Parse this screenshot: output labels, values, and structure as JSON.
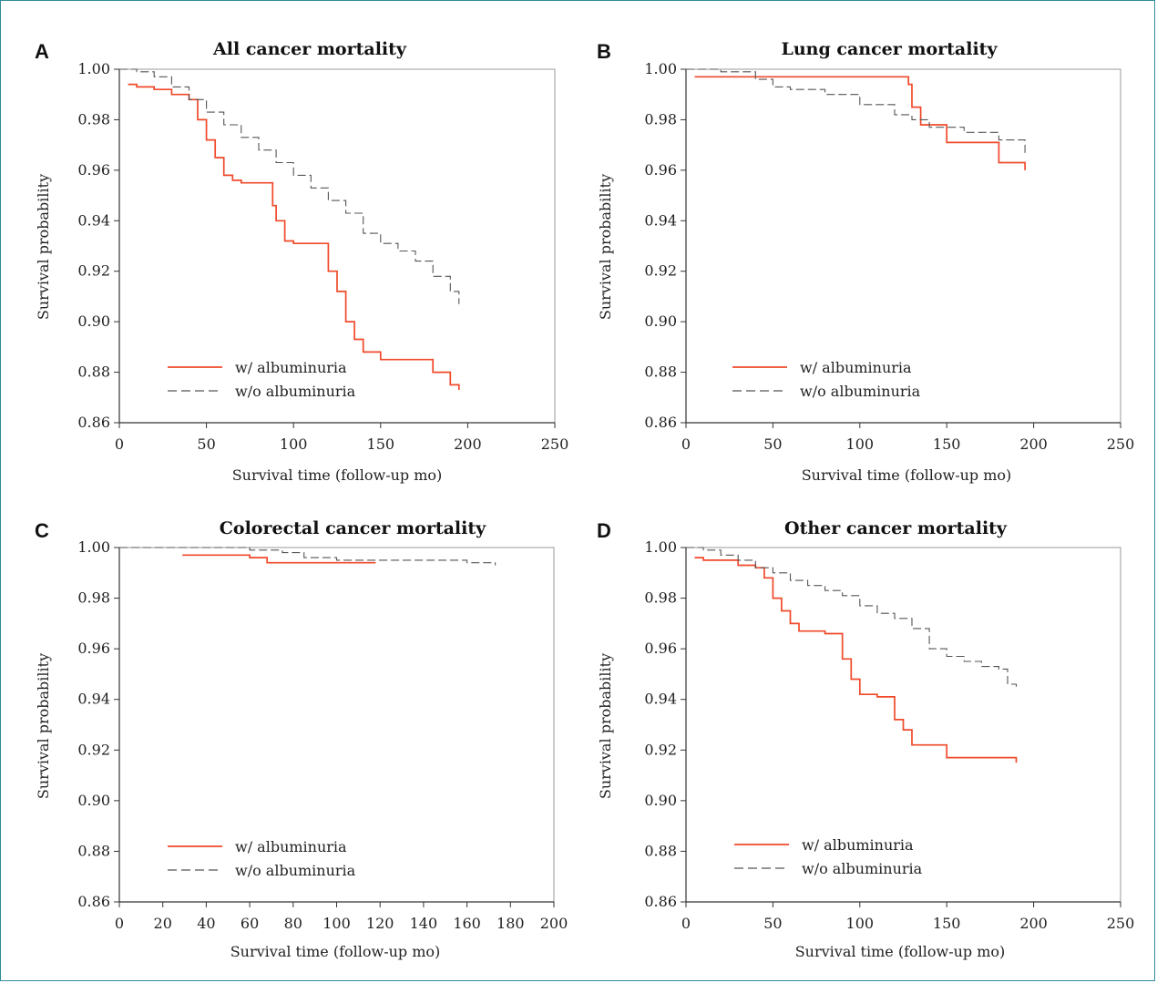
{
  "colors": {
    "with_series": "#f0492a",
    "without_series": "#555555",
    "axis": "#333333",
    "frame": "#2f8f9a"
  },
  "chart_data": [
    {
      "panel_letter": "A",
      "type": "line",
      "title": "All cancer mortality",
      "xlabel": "Survival time (follow-up mo)",
      "ylabel": "Survival probability",
      "xlim": [
        0,
        250
      ],
      "ylim": [
        0.86,
        1.0
      ],
      "xticks": [
        0,
        50,
        100,
        150,
        200,
        250
      ],
      "yticks": [
        0.86,
        0.88,
        0.9,
        0.92,
        0.94,
        0.96,
        0.98,
        1.0
      ],
      "ytick_labels": [
        "0.86",
        "0.88",
        "0.90",
        "0.92",
        "0.94",
        "0.96",
        "0.98",
        "1.00"
      ],
      "legend_position": "bottom-left",
      "series": [
        {
          "name": "w/  albuminuria",
          "style": "solid",
          "x": [
            5,
            10,
            20,
            30,
            40,
            45,
            50,
            55,
            60,
            65,
            70,
            80,
            88,
            90,
            95,
            100,
            110,
            120,
            125,
            130,
            135,
            140,
            150,
            160,
            175,
            180,
            190,
            195
          ],
          "y": [
            0.994,
            0.993,
            0.992,
            0.99,
            0.988,
            0.98,
            0.972,
            0.965,
            0.958,
            0.956,
            0.955,
            0.955,
            0.946,
            0.94,
            0.932,
            0.931,
            0.931,
            0.92,
            0.912,
            0.9,
            0.893,
            0.888,
            0.885,
            0.885,
            0.885,
            0.88,
            0.875,
            0.873
          ]
        },
        {
          "name": "w/o albuminuria",
          "style": "dashed",
          "x": [
            0,
            10,
            20,
            30,
            40,
            50,
            60,
            70,
            80,
            90,
            100,
            110,
            120,
            130,
            140,
            150,
            160,
            170,
            180,
            190,
            195
          ],
          "y": [
            1.0,
            0.999,
            0.997,
            0.993,
            0.988,
            0.983,
            0.978,
            0.973,
            0.968,
            0.963,
            0.958,
            0.953,
            0.948,
            0.943,
            0.935,
            0.931,
            0.928,
            0.924,
            0.918,
            0.912,
            0.907
          ]
        }
      ]
    },
    {
      "panel_letter": "B",
      "type": "line",
      "title": "Lung cancer mortality",
      "xlabel": "Survival time (follow-up mo)",
      "ylabel": "Survival probability",
      "xlim": [
        0,
        250
      ],
      "ylim": [
        0.86,
        1.0
      ],
      "xticks": [
        0,
        50,
        100,
        150,
        200,
        250
      ],
      "yticks": [
        0.86,
        0.88,
        0.9,
        0.92,
        0.94,
        0.96,
        0.98,
        1.0
      ],
      "ytick_labels": [
        "0.86",
        "0.88",
        "0.90",
        "0.92",
        "0.94",
        "0.96",
        "0.98",
        "1.00"
      ],
      "legend_position": "bottom-left",
      "series": [
        {
          "name": "w/  albuminuria",
          "style": "solid",
          "x": [
            5,
            40,
            128,
            130,
            135,
            150,
            178,
            180,
            195
          ],
          "y": [
            0.997,
            0.997,
            0.994,
            0.985,
            0.978,
            0.971,
            0.971,
            0.963,
            0.96
          ]
        },
        {
          "name": "w/o albuminuria",
          "style": "dashed",
          "x": [
            0,
            20,
            40,
            50,
            60,
            80,
            100,
            120,
            130,
            140,
            160,
            180,
            190,
            195
          ],
          "y": [
            1.0,
            0.999,
            0.996,
            0.993,
            0.992,
            0.99,
            0.986,
            0.982,
            0.98,
            0.977,
            0.975,
            0.972,
            0.972,
            0.966
          ]
        }
      ]
    },
    {
      "panel_letter": "C",
      "type": "line",
      "title": "Colorectal cancer mortality",
      "xlabel": "Survival time (follow-up mo)",
      "ylabel": "Survival probability",
      "xlim": [
        0,
        200
      ],
      "ylim": [
        0.86,
        1.0
      ],
      "xticks": [
        0,
        20,
        40,
        60,
        80,
        100,
        120,
        140,
        160,
        180,
        200
      ],
      "yticks": [
        0.86,
        0.88,
        0.9,
        0.92,
        0.94,
        0.96,
        0.98,
        1.0
      ],
      "ytick_labels": [
        "0.86",
        "0.88",
        "0.90",
        "0.92",
        "0.94",
        "0.96",
        "0.98",
        "1.00"
      ],
      "legend_position": "bottom-left",
      "series": [
        {
          "name": "w/  albuminuria",
          "style": "solid",
          "x": [
            29,
            40,
            60,
            68,
            80,
            100,
            118
          ],
          "y": [
            0.997,
            0.997,
            0.996,
            0.994,
            0.994,
            0.994,
            0.994
          ]
        },
        {
          "name": "w/o albuminuria",
          "style": "dashed",
          "x": [
            0,
            40,
            60,
            75,
            85,
            100,
            120,
            140,
            160,
            173
          ],
          "y": [
            1.0,
            1.0,
            0.999,
            0.998,
            0.996,
            0.995,
            0.995,
            0.995,
            0.994,
            0.993
          ]
        }
      ]
    },
    {
      "panel_letter": "D",
      "type": "line",
      "title": "Other cancer mortality",
      "xlabel": "Survival time (follow-up mo)",
      "ylabel": "Survival probability",
      "xlim": [
        0,
        250
      ],
      "ylim": [
        0.86,
        1.0
      ],
      "xticks": [
        0,
        50,
        100,
        150,
        200,
        250
      ],
      "yticks": [
        0.86,
        0.88,
        0.9,
        0.92,
        0.94,
        0.96,
        0.98,
        1.0
      ],
      "ytick_labels": [
        "0.86",
        "0.88",
        "0.90",
        "0.92",
        "0.94",
        "0.96",
        "0.98",
        "1.00"
      ],
      "legend_position": "bottom-left",
      "series": [
        {
          "name": "w/  albuminuria",
          "style": "solid",
          "x": [
            5,
            10,
            20,
            30,
            40,
            45,
            50,
            55,
            60,
            65,
            70,
            80,
            88,
            90,
            95,
            100,
            110,
            118,
            120,
            125,
            130,
            140,
            150,
            160,
            175,
            190
          ],
          "y": [
            0.996,
            0.995,
            0.995,
            0.993,
            0.992,
            0.988,
            0.98,
            0.975,
            0.97,
            0.967,
            0.967,
            0.966,
            0.966,
            0.956,
            0.948,
            0.942,
            0.941,
            0.941,
            0.932,
            0.928,
            0.922,
            0.922,
            0.917,
            0.917,
            0.917,
            0.915
          ]
        },
        {
          "name": "w/o albuminuria",
          "style": "dashed",
          "x": [
            0,
            10,
            20,
            30,
            40,
            50,
            60,
            70,
            80,
            90,
            100,
            110,
            120,
            130,
            140,
            150,
            160,
            170,
            180,
            185,
            190
          ],
          "y": [
            1.0,
            0.999,
            0.997,
            0.995,
            0.992,
            0.99,
            0.987,
            0.985,
            0.983,
            0.981,
            0.977,
            0.974,
            0.972,
            0.968,
            0.96,
            0.957,
            0.955,
            0.953,
            0.952,
            0.946,
            0.945
          ]
        }
      ]
    }
  ]
}
